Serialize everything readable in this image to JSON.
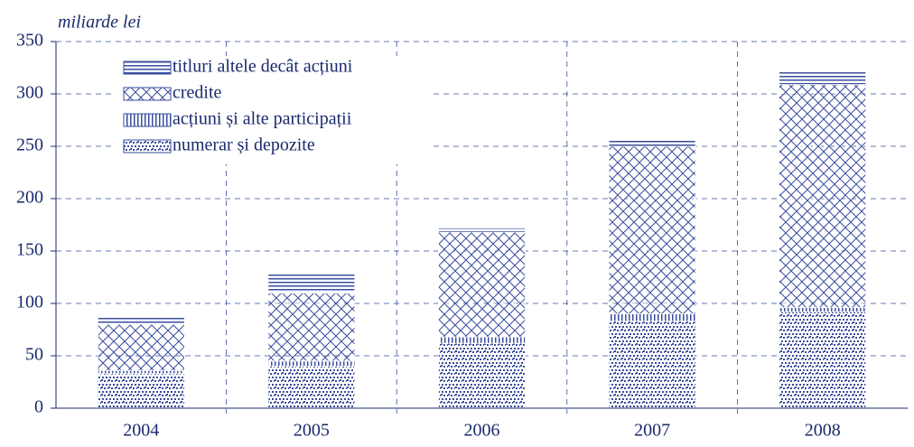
{
  "chart_data": {
    "type": "stacked_bar",
    "y_label": "miliarde lei",
    "categories": [
      "2004",
      "2005",
      "2006",
      "2007",
      "2008"
    ],
    "series": [
      {
        "name": "numerar și depozite",
        "color": "#3a4d9c",
        "pattern": "dots",
        "values": [
          33,
          40,
          62,
          83,
          92
        ]
      },
      {
        "name": "acțiuni și alte participații",
        "color": "#3a4d9c",
        "pattern": "vertical",
        "values": [
          3,
          5,
          6,
          7,
          4
        ]
      },
      {
        "name": "credite",
        "color": "#3a4d9c",
        "pattern": "crosshatch",
        "values": [
          44,
          65,
          100,
          160,
          213
        ]
      },
      {
        "name": "titluri altele decât acțiuni",
        "color": "#3a4d9c",
        "pattern": "horizontal",
        "values": [
          8,
          20,
          4,
          7,
          13
        ]
      }
    ],
    "ylim": [
      0,
      350
    ],
    "yticks": [
      0,
      50,
      100,
      150,
      200,
      250,
      300,
      350
    ],
    "grid": true
  }
}
